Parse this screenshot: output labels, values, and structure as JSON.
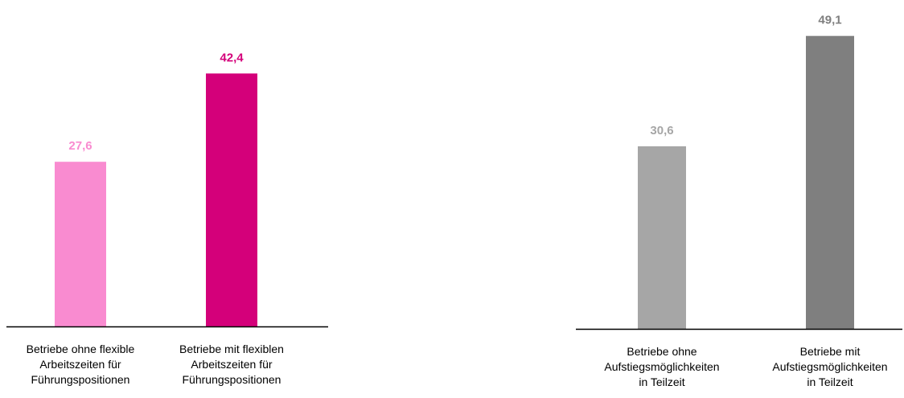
{
  "chart_data": [
    {
      "type": "bar",
      "categories": [
        [
          "Betriebe ohne flexible",
          "Arbeitszeiten für",
          "Führungspositionen"
        ],
        [
          "Betriebe mit flexiblen",
          "Arbeitszeiten für",
          "Führungspositionen"
        ]
      ],
      "values": [
        27.6,
        42.4
      ],
      "value_labels": [
        "27,6",
        "42,4"
      ],
      "colors": [
        "#f98bd0",
        "#d4007a"
      ],
      "ylim": [
        0,
        50
      ],
      "grid": false,
      "title": "",
      "xlabel": "",
      "ylabel": ""
    },
    {
      "type": "bar",
      "categories": [
        [
          "Betriebe ohne",
          "Aufstiegsmöglichkeiten",
          "in Teilzeit"
        ],
        [
          "Betriebe mit",
          "Aufstiegsmöglichkeiten",
          "in Teilzeit"
        ]
      ],
      "values": [
        30.6,
        49.1
      ],
      "value_labels": [
        "30,6",
        "49,1"
      ],
      "colors": [
        "#a6a6a6",
        "#7f7f7f"
      ],
      "ylim": [
        0,
        50
      ],
      "grid": false,
      "title": "",
      "xlabel": "",
      "ylabel": ""
    }
  ]
}
